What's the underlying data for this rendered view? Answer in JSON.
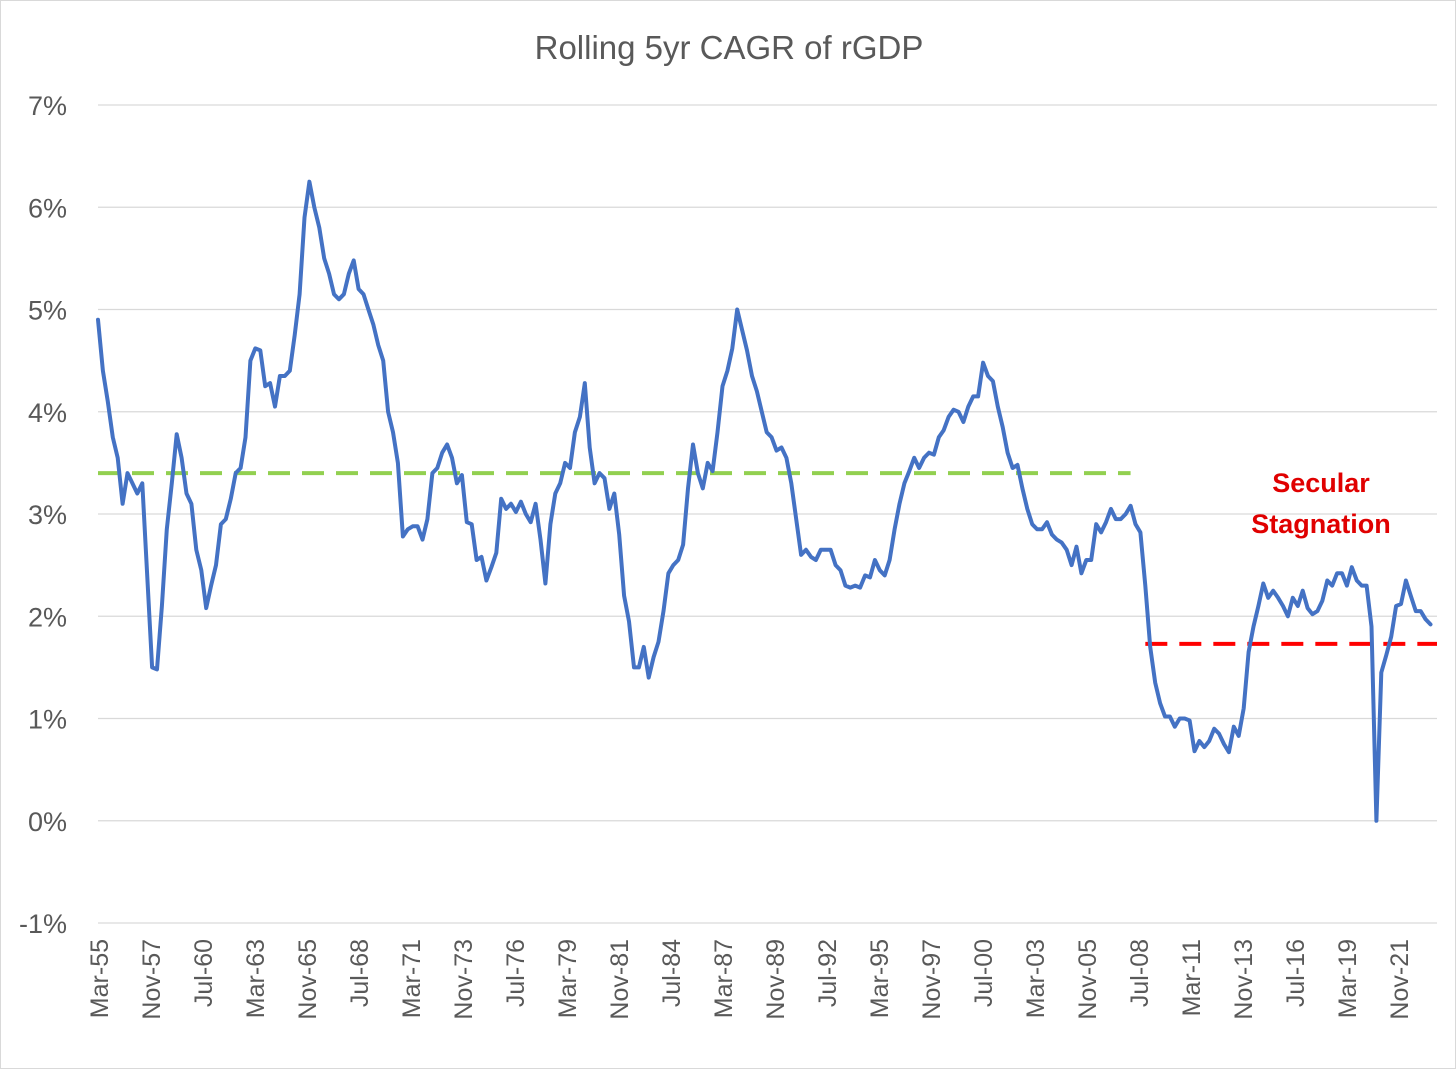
{
  "chart_data": {
    "type": "line",
    "title": "Rolling 5yr CAGR of rGDP",
    "xlabel": "",
    "ylabel": "",
    "ylim": [
      -1,
      7
    ],
    "y_ticks": [
      "-1%",
      "0%",
      "1%",
      "2%",
      "3%",
      "4%",
      "5%",
      "6%",
      "7%"
    ],
    "x_tick_labels": [
      "Mar-55",
      "Nov-57",
      "Jul-60",
      "Mar-63",
      "Nov-65",
      "Jul-68",
      "Mar-71",
      "Nov-73",
      "Jul-76",
      "Mar-79",
      "Nov-81",
      "Jul-84",
      "Mar-87",
      "Nov-89",
      "Jul-92",
      "Mar-95",
      "Nov-97",
      "Jul-00",
      "Mar-03",
      "Nov-05",
      "Jul-08",
      "Mar-11",
      "Nov-13",
      "Jul-16",
      "Mar-19",
      "Nov-21"
    ],
    "x_range": [
      1955.17,
      2023.25
    ],
    "grid": true,
    "legend": "none",
    "series": [
      {
        "color": "#4472c4",
        "points": [
          [
            1955.17,
            4.9
          ],
          [
            1955.42,
            4.4
          ],
          [
            1955.67,
            4.1
          ],
          [
            1955.92,
            3.75
          ],
          [
            1956.17,
            3.55
          ],
          [
            1956.42,
            3.1
          ],
          [
            1956.67,
            3.4
          ],
          [
            1956.92,
            3.3
          ],
          [
            1957.17,
            3.2
          ],
          [
            1957.42,
            3.3
          ],
          [
            1957.92,
            1.5
          ],
          [
            1958.17,
            1.48
          ],
          [
            1958.42,
            2.1
          ],
          [
            1958.67,
            2.85
          ],
          [
            1958.92,
            3.3
          ],
          [
            1959.17,
            3.78
          ],
          [
            1959.42,
            3.55
          ],
          [
            1959.67,
            3.2
          ],
          [
            1959.92,
            3.1
          ],
          [
            1960.17,
            2.65
          ],
          [
            1960.42,
            2.45
          ],
          [
            1960.67,
            2.08
          ],
          [
            1960.92,
            2.3
          ],
          [
            1961.17,
            2.5
          ],
          [
            1961.42,
            2.9
          ],
          [
            1961.67,
            2.95
          ],
          [
            1961.92,
            3.15
          ],
          [
            1962.17,
            3.4
          ],
          [
            1962.42,
            3.45
          ],
          [
            1962.67,
            3.75
          ],
          [
            1962.92,
            4.5
          ],
          [
            1963.17,
            4.62
          ],
          [
            1963.42,
            4.6
          ],
          [
            1963.67,
            4.25
          ],
          [
            1963.92,
            4.28
          ],
          [
            1964.17,
            4.05
          ],
          [
            1964.42,
            4.35
          ],
          [
            1964.67,
            4.35
          ],
          [
            1964.92,
            4.4
          ],
          [
            1965.17,
            4.75
          ],
          [
            1965.42,
            5.15
          ],
          [
            1965.67,
            5.9
          ],
          [
            1965.92,
            6.25
          ],
          [
            1966.17,
            6.0
          ],
          [
            1966.42,
            5.8
          ],
          [
            1966.67,
            5.5
          ],
          [
            1966.92,
            5.35
          ],
          [
            1967.17,
            5.15
          ],
          [
            1967.42,
            5.1
          ],
          [
            1967.67,
            5.15
          ],
          [
            1967.92,
            5.35
          ],
          [
            1968.17,
            5.48
          ],
          [
            1968.42,
            5.2
          ],
          [
            1968.67,
            5.15
          ],
          [
            1968.92,
            5.0
          ],
          [
            1969.17,
            4.85
          ],
          [
            1969.42,
            4.65
          ],
          [
            1969.67,
            4.5
          ],
          [
            1969.92,
            4.0
          ],
          [
            1970.17,
            3.8
          ],
          [
            1970.42,
            3.5
          ],
          [
            1970.67,
            2.78
          ],
          [
            1970.92,
            2.85
          ],
          [
            1971.17,
            2.88
          ],
          [
            1971.42,
            2.88
          ],
          [
            1971.67,
            2.75
          ],
          [
            1971.92,
            2.95
          ],
          [
            1972.17,
            3.4
          ],
          [
            1972.42,
            3.45
          ],
          [
            1972.67,
            3.6
          ],
          [
            1972.92,
            3.68
          ],
          [
            1973.17,
            3.55
          ],
          [
            1973.42,
            3.3
          ],
          [
            1973.67,
            3.38
          ],
          [
            1973.92,
            2.92
          ],
          [
            1974.17,
            2.9
          ],
          [
            1974.42,
            2.55
          ],
          [
            1974.67,
            2.58
          ],
          [
            1974.92,
            2.35
          ],
          [
            1975.17,
            2.48
          ],
          [
            1975.42,
            2.62
          ],
          [
            1975.67,
            3.15
          ],
          [
            1975.92,
            3.05
          ],
          [
            1976.17,
            3.1
          ],
          [
            1976.42,
            3.02
          ],
          [
            1976.67,
            3.12
          ],
          [
            1976.92,
            3.0
          ],
          [
            1977.17,
            2.92
          ],
          [
            1977.42,
            3.1
          ],
          [
            1977.67,
            2.75
          ],
          [
            1977.92,
            2.32
          ],
          [
            1978.17,
            2.9
          ],
          [
            1978.42,
            3.2
          ],
          [
            1978.67,
            3.3
          ],
          [
            1978.92,
            3.5
          ],
          [
            1979.17,
            3.45
          ],
          [
            1979.42,
            3.8
          ],
          [
            1979.67,
            3.95
          ],
          [
            1979.92,
            4.28
          ],
          [
            1980.17,
            3.65
          ],
          [
            1980.42,
            3.3
          ],
          [
            1980.67,
            3.4
          ],
          [
            1980.92,
            3.35
          ],
          [
            1981.17,
            3.05
          ],
          [
            1981.42,
            3.2
          ],
          [
            1981.67,
            2.8
          ],
          [
            1981.92,
            2.2
          ],
          [
            1982.17,
            1.95
          ],
          [
            1982.42,
            1.5
          ],
          [
            1982.67,
            1.5
          ],
          [
            1982.92,
            1.7
          ],
          [
            1983.17,
            1.4
          ],
          [
            1983.42,
            1.6
          ],
          [
            1983.67,
            1.75
          ],
          [
            1983.92,
            2.05
          ],
          [
            1984.17,
            2.42
          ],
          [
            1984.42,
            2.5
          ],
          [
            1984.67,
            2.55
          ],
          [
            1984.92,
            2.7
          ],
          [
            1985.17,
            3.25
          ],
          [
            1985.42,
            3.68
          ],
          [
            1985.67,
            3.4
          ],
          [
            1985.92,
            3.25
          ],
          [
            1986.17,
            3.5
          ],
          [
            1986.42,
            3.42
          ],
          [
            1986.67,
            3.8
          ],
          [
            1986.92,
            4.25
          ],
          [
            1987.17,
            4.4
          ],
          [
            1987.42,
            4.62
          ],
          [
            1987.67,
            5.0
          ],
          [
            1987.92,
            4.8
          ],
          [
            1988.17,
            4.6
          ],
          [
            1988.42,
            4.35
          ],
          [
            1988.67,
            4.2
          ],
          [
            1988.92,
            4.0
          ],
          [
            1989.17,
            3.8
          ],
          [
            1989.42,
            3.75
          ],
          [
            1989.67,
            3.62
          ],
          [
            1989.92,
            3.65
          ],
          [
            1990.17,
            3.55
          ],
          [
            1990.42,
            3.3
          ],
          [
            1990.67,
            2.95
          ],
          [
            1990.92,
            2.6
          ],
          [
            1991.17,
            2.65
          ],
          [
            1991.42,
            2.58
          ],
          [
            1991.67,
            2.55
          ],
          [
            1991.92,
            2.65
          ],
          [
            1992.17,
            2.65
          ],
          [
            1992.42,
            2.65
          ],
          [
            1992.67,
            2.5
          ],
          [
            1992.92,
            2.45
          ],
          [
            1993.17,
            2.3
          ],
          [
            1993.42,
            2.28
          ],
          [
            1993.67,
            2.3
          ],
          [
            1993.92,
            2.28
          ],
          [
            1994.17,
            2.4
          ],
          [
            1994.42,
            2.38
          ],
          [
            1994.67,
            2.55
          ],
          [
            1994.92,
            2.45
          ],
          [
            1995.17,
            2.4
          ],
          [
            1995.42,
            2.55
          ],
          [
            1995.67,
            2.85
          ],
          [
            1995.92,
            3.1
          ],
          [
            1996.17,
            3.3
          ],
          [
            1996.42,
            3.42
          ],
          [
            1996.67,
            3.55
          ],
          [
            1996.92,
            3.45
          ],
          [
            1997.17,
            3.55
          ],
          [
            1997.42,
            3.6
          ],
          [
            1997.67,
            3.58
          ],
          [
            1997.92,
            3.75
          ],
          [
            1998.17,
            3.82
          ],
          [
            1998.42,
            3.95
          ],
          [
            1998.67,
            4.02
          ],
          [
            1998.92,
            4.0
          ],
          [
            1999.17,
            3.9
          ],
          [
            1999.42,
            4.05
          ],
          [
            1999.67,
            4.15
          ],
          [
            1999.92,
            4.15
          ],
          [
            2000.17,
            4.48
          ],
          [
            2000.42,
            4.35
          ],
          [
            2000.67,
            4.3
          ],
          [
            2000.92,
            4.05
          ],
          [
            2001.17,
            3.85
          ],
          [
            2001.42,
            3.6
          ],
          [
            2001.67,
            3.45
          ],
          [
            2001.92,
            3.48
          ],
          [
            2002.17,
            3.25
          ],
          [
            2002.42,
            3.05
          ],
          [
            2002.67,
            2.9
          ],
          [
            2002.92,
            2.85
          ],
          [
            2003.17,
            2.85
          ],
          [
            2003.42,
            2.92
          ],
          [
            2003.67,
            2.8
          ],
          [
            2003.92,
            2.75
          ],
          [
            2004.17,
            2.72
          ],
          [
            2004.42,
            2.65
          ],
          [
            2004.67,
            2.5
          ],
          [
            2004.92,
            2.68
          ],
          [
            2005.17,
            2.42
          ],
          [
            2005.42,
            2.55
          ],
          [
            2005.67,
            2.55
          ],
          [
            2005.92,
            2.9
          ],
          [
            2006.17,
            2.82
          ],
          [
            2006.42,
            2.92
          ],
          [
            2006.67,
            3.05
          ],
          [
            2006.92,
            2.95
          ],
          [
            2007.17,
            2.95
          ],
          [
            2007.42,
            3.0
          ],
          [
            2007.67,
            3.08
          ],
          [
            2007.92,
            2.9
          ],
          [
            2008.17,
            2.82
          ],
          [
            2008.42,
            2.3
          ],
          [
            2008.67,
            1.7
          ],
          [
            2008.92,
            1.35
          ],
          [
            2009.17,
            1.15
          ],
          [
            2009.42,
            1.02
          ],
          [
            2009.67,
            1.02
          ],
          [
            2009.92,
            0.92
          ],
          [
            2010.17,
            1.0
          ],
          [
            2010.42,
            1.0
          ],
          [
            2010.67,
            0.98
          ],
          [
            2010.92,
            0.68
          ],
          [
            2011.17,
            0.78
          ],
          [
            2011.42,
            0.72
          ],
          [
            2011.67,
            0.78
          ],
          [
            2011.92,
            0.9
          ],
          [
            2012.17,
            0.85
          ],
          [
            2012.42,
            0.75
          ],
          [
            2012.67,
            0.67
          ],
          [
            2012.92,
            0.92
          ],
          [
            2013.17,
            0.83
          ],
          [
            2013.42,
            1.1
          ],
          [
            2013.67,
            1.65
          ],
          [
            2013.92,
            1.9
          ],
          [
            2014.17,
            2.1
          ],
          [
            2014.42,
            2.32
          ],
          [
            2014.67,
            2.18
          ],
          [
            2014.92,
            2.25
          ],
          [
            2015.17,
            2.18
          ],
          [
            2015.42,
            2.1
          ],
          [
            2015.67,
            2.0
          ],
          [
            2015.92,
            2.18
          ],
          [
            2016.17,
            2.1
          ],
          [
            2016.42,
            2.25
          ],
          [
            2016.67,
            2.08
          ],
          [
            2016.92,
            2.02
          ],
          [
            2017.17,
            2.05
          ],
          [
            2017.42,
            2.15
          ],
          [
            2017.67,
            2.35
          ],
          [
            2017.92,
            2.3
          ],
          [
            2018.17,
            2.42
          ],
          [
            2018.42,
            2.42
          ],
          [
            2018.67,
            2.3
          ],
          [
            2018.92,
            2.48
          ],
          [
            2019.17,
            2.35
          ],
          [
            2019.42,
            2.3
          ],
          [
            2019.67,
            2.3
          ],
          [
            2019.92,
            1.9
          ],
          [
            2020.17,
            0.0
          ],
          [
            2020.42,
            1.45
          ],
          [
            2020.67,
            1.62
          ],
          [
            2020.92,
            1.8
          ],
          [
            2021.17,
            2.1
          ],
          [
            2021.42,
            2.12
          ],
          [
            2021.67,
            2.35
          ],
          [
            2021.92,
            2.2
          ],
          [
            2022.17,
            2.05
          ],
          [
            2022.42,
            2.05
          ],
          [
            2022.67,
            1.97
          ],
          [
            2022.92,
            1.92
          ]
        ]
      }
    ],
    "reference_lines": [
      {
        "color": "#92d050",
        "y": 3.4,
        "x_start": 1955.17,
        "x_end": 2007.67,
        "style": "dashed"
      },
      {
        "color": "#ff0000",
        "y": 1.73,
        "x_start": 2008.42,
        "x_end": 2023.25,
        "style": "dashed"
      }
    ],
    "annotations": [
      {
        "lines": [
          "Secular",
          "Stagnation"
        ],
        "color": "#e00000"
      }
    ]
  }
}
